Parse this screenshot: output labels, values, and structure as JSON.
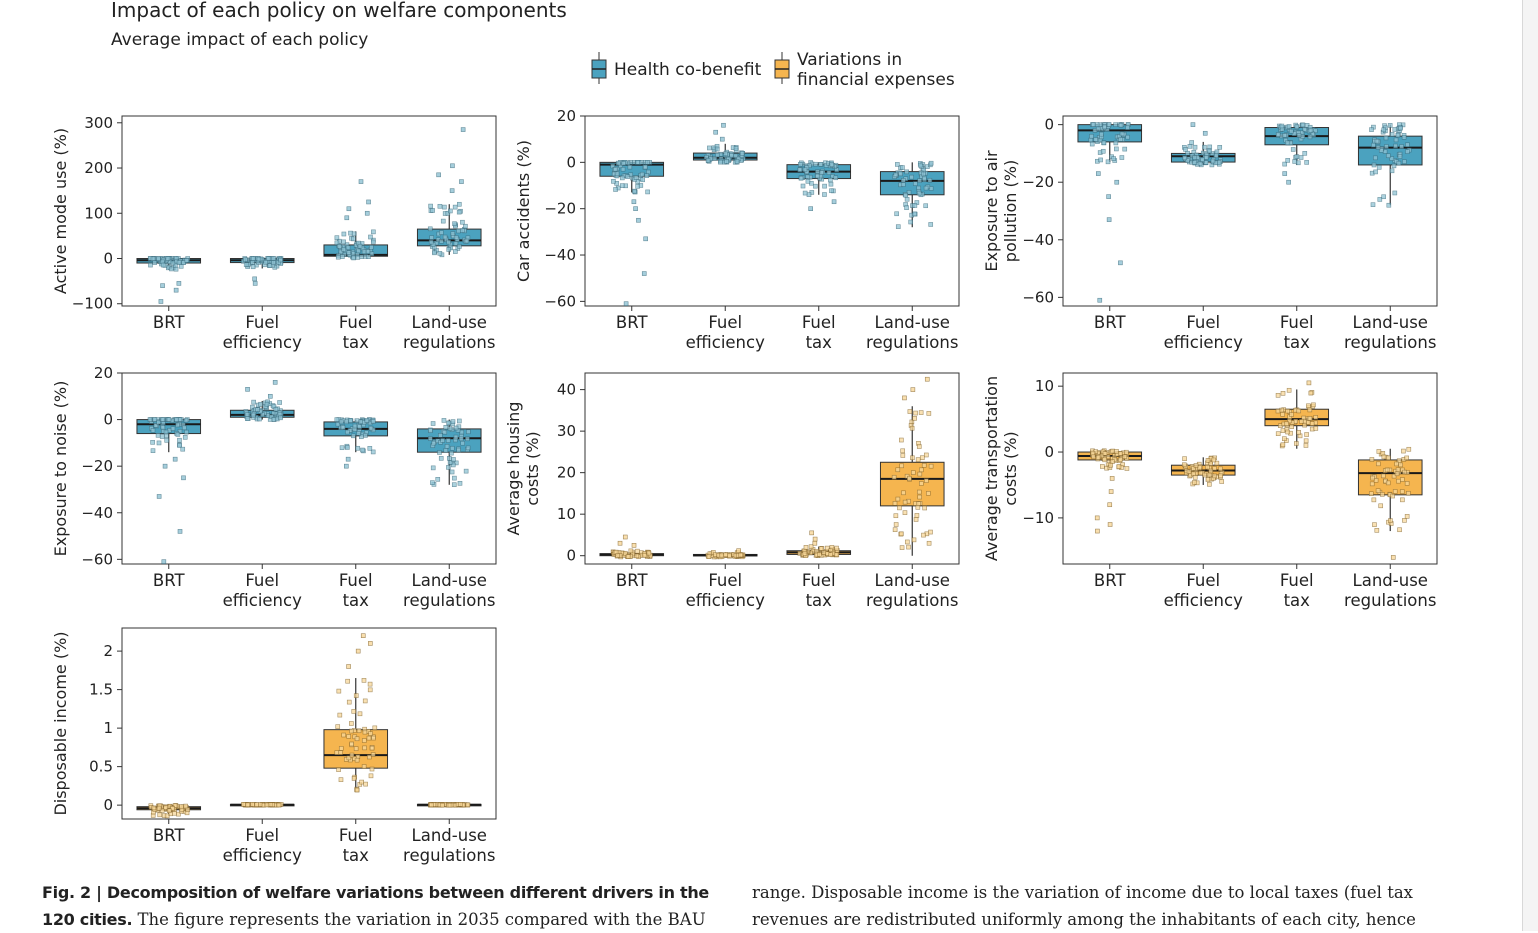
{
  "title": "Impact of each policy on welfare components",
  "subtitle": "Average impact of each policy",
  "legend": [
    {
      "label": "Health co-benefit",
      "color": "#4ba2bf"
    },
    {
      "label": "Variations in\nfinancial expenses",
      "color": "#f5b54f"
    }
  ],
  "chart_data": [
    {
      "type": "box",
      "id": "active",
      "ylabel": "Active mode use (%)",
      "categories": [
        "BRT",
        "Fuel\nefficiency",
        "Fuel\ntax",
        "Land-use\nregulations"
      ],
      "ylim": [
        -105,
        315
      ],
      "yticks": [
        -100,
        0,
        100,
        200,
        300
      ],
      "color": "#4ba2bf",
      "boxes": [
        {
          "q1": -10,
          "median": -4,
          "q3": 0,
          "whislo": -25,
          "whishi": 0,
          "outliers": [
            -95,
            -70,
            -60,
            -55
          ]
        },
        {
          "q1": -9,
          "median": -4,
          "q3": 0,
          "whislo": -22,
          "whishi": 0,
          "outliers": [
            -55,
            -45
          ]
        },
        {
          "q1": 5,
          "median": 8,
          "q3": 30,
          "whislo": 0,
          "whishi": 60,
          "outliers": [
            90,
            100,
            110,
            125,
            170
          ]
        },
        {
          "q1": 28,
          "median": 40,
          "q3": 65,
          "whislo": 8,
          "whishi": 120,
          "outliers": [
            150,
            170,
            185,
            205,
            285
          ]
        }
      ]
    },
    {
      "type": "box",
      "id": "accidents",
      "ylabel": "Car accidents (%)",
      "categories": [
        "BRT",
        "Fuel\nefficiency",
        "Fuel\ntax",
        "Land-use\nregulations"
      ],
      "ylim": [
        -62,
        20
      ],
      "yticks": [
        -60,
        -40,
        -20,
        0,
        20
      ],
      "color": "#4ba2bf",
      "boxes": [
        {
          "q1": -6,
          "median": -1,
          "q3": 0,
          "whislo": -13,
          "whishi": 0,
          "outliers": [
            -17,
            -20,
            -25,
            -33,
            -48,
            -61
          ]
        },
        {
          "q1": 1,
          "median": 2,
          "q3": 4,
          "whislo": 0,
          "whishi": 8,
          "outliers": [
            10,
            13,
            16
          ]
        },
        {
          "q1": -7,
          "median": -4,
          "q3": -1,
          "whislo": -14,
          "whishi": 0,
          "outliers": [
            -17,
            -20
          ]
        },
        {
          "q1": -14,
          "median": -8,
          "q3": -4,
          "whislo": -28,
          "whishi": 0,
          "outliers": []
        }
      ]
    },
    {
      "type": "box",
      "id": "air",
      "ylabel": "Exposure to air\npollution (%)",
      "categories": [
        "BRT",
        "Fuel\nefficiency",
        "Fuel\ntax",
        "Land-use\nregulations"
      ],
      "ylim": [
        -63,
        3
      ],
      "yticks": [
        -60,
        -40,
        -20,
        0
      ],
      "color": "#4ba2bf",
      "boxes": [
        {
          "q1": -6,
          "median": -2,
          "q3": 0,
          "whislo": -13,
          "whishi": 0,
          "outliers": [
            -17,
            -20,
            -25,
            -33,
            -48,
            -61
          ]
        },
        {
          "q1": -13,
          "median": -11,
          "q3": -10,
          "whislo": -14,
          "whishi": -6,
          "outliers": [
            -3,
            0
          ]
        },
        {
          "q1": -7,
          "median": -4,
          "q3": -1,
          "whislo": -14,
          "whishi": 0,
          "outliers": [
            -17,
            -20
          ]
        },
        {
          "q1": -14,
          "median": -8,
          "q3": -4,
          "whislo": -28,
          "whishi": 0,
          "outliers": []
        }
      ]
    },
    {
      "type": "box",
      "id": "noise",
      "ylabel": "Exposure to noise (%)",
      "categories": [
        "BRT",
        "Fuel\nefficiency",
        "Fuel\ntax",
        "Land-use\nregulations"
      ],
      "ylim": [
        -62,
        20
      ],
      "yticks": [
        -60,
        -40,
        -20,
        0,
        20
      ],
      "color": "#4ba2bf",
      "boxes": [
        {
          "q1": -6,
          "median": -2,
          "q3": 0,
          "whislo": -14,
          "whishi": 0,
          "outliers": [
            -17,
            -20,
            -25,
            -33,
            -48,
            -61
          ]
        },
        {
          "q1": 1,
          "median": 2,
          "q3": 4,
          "whislo": 0,
          "whishi": 8,
          "outliers": [
            10,
            13,
            16
          ]
        },
        {
          "q1": -7,
          "median": -4,
          "q3": -1,
          "whislo": -14,
          "whishi": 0,
          "outliers": [
            -17,
            -20
          ]
        },
        {
          "q1": -14,
          "median": -8,
          "q3": -4,
          "whislo": -28,
          "whishi": 0,
          "outliers": []
        }
      ]
    },
    {
      "type": "box",
      "id": "housing",
      "ylabel": "Average housing\ncosts (%)",
      "categories": [
        "BRT",
        "Fuel\nefficiency",
        "Fuel\ntax",
        "Land-use\nregulations"
      ],
      "ylim": [
        -2,
        44
      ],
      "yticks": [
        0,
        10,
        20,
        30,
        40
      ],
      "color": "#f5b54f",
      "boxes": [
        {
          "q1": 0,
          "median": 0.3,
          "q3": 0.5,
          "whislo": -0.3,
          "whishi": 1.2,
          "outliers": [
            2.5,
            3,
            4.5
          ]
        },
        {
          "q1": 0,
          "median": 0.1,
          "q3": 0.3,
          "whislo": -0.3,
          "whishi": 0.8,
          "outliers": [
            1.2
          ]
        },
        {
          "q1": 0.3,
          "median": 0.8,
          "q3": 1.2,
          "whislo": 0,
          "whishi": 2.2,
          "outliers": [
            3,
            4,
            5.5
          ]
        },
        {
          "q1": 12,
          "median": 18.5,
          "q3": 22.5,
          "whislo": 0,
          "whishi": 36,
          "outliers": [
            38,
            40,
            42.5
          ]
        }
      ]
    },
    {
      "type": "box",
      "id": "transport",
      "ylabel": "Average transportation\ncosts (%)",
      "categories": [
        "BRT",
        "Fuel\nefficiency",
        "Fuel\ntax",
        "Land-use\nregulations"
      ],
      "ylim": [
        -17,
        12
      ],
      "yticks": [
        -10,
        0,
        10
      ],
      "color": "#f5b54f",
      "boxes": [
        {
          "q1": -1.2,
          "median": -0.6,
          "q3": 0,
          "whislo": -2.5,
          "whishi": 0.2,
          "outliers": [
            -4,
            -6,
            -8,
            -10,
            -11,
            -12
          ]
        },
        {
          "q1": -3.5,
          "median": -2.8,
          "q3": -2,
          "whislo": -5,
          "whishi": -0.8,
          "outliers": []
        },
        {
          "q1": 4,
          "median": 5,
          "q3": 6.5,
          "whislo": 0.5,
          "whishi": 9.5,
          "outliers": [
            10.5
          ]
        },
        {
          "q1": -6.5,
          "median": -3.2,
          "q3": -1.2,
          "whislo": -12,
          "whishi": 0.5,
          "outliers": [
            -16
          ]
        }
      ]
    },
    {
      "type": "box",
      "id": "income",
      "ylabel": "Disposable income (%)",
      "categories": [
        "BRT",
        "Fuel\nefficiency",
        "Fuel\ntax",
        "Land-use\nregulations"
      ],
      "ylim": [
        -0.18,
        2.3
      ],
      "yticks": [
        0,
        0.5,
        1,
        1.5,
        2
      ],
      "yticklabels": [
        "0",
        "0.5",
        "1",
        "1.5",
        "2"
      ],
      "color": "#f5b54f",
      "boxes": [
        {
          "q1": -0.06,
          "median": -0.04,
          "q3": -0.02,
          "whislo": -0.14,
          "whishi": 0,
          "outliers": []
        },
        {
          "q1": 0,
          "median": 0.005,
          "q3": 0.01,
          "whislo": 0,
          "whishi": 0.01,
          "outliers": []
        },
        {
          "q1": 0.48,
          "median": 0.65,
          "q3": 0.98,
          "whislo": 0.18,
          "whishi": 1.65,
          "outliers": [
            1.8,
            2.0,
            2.1,
            2.2
          ]
        },
        {
          "q1": 0,
          "median": 0.005,
          "q3": 0.01,
          "whislo": 0,
          "whishi": 0.01,
          "outliers": []
        }
      ]
    }
  ],
  "caption": {
    "left_bold": "Fig. 2 | Decomposition of welfare variations between different drivers in the 120 cities.",
    "left_text": " The figure represents the variation in 2035 compared with the BAU",
    "right_text": "range. Disposable income is the variation of income due to local taxes (fuel tax revenues are redistributed uniformly among the inhabitants of each city, hence"
  }
}
